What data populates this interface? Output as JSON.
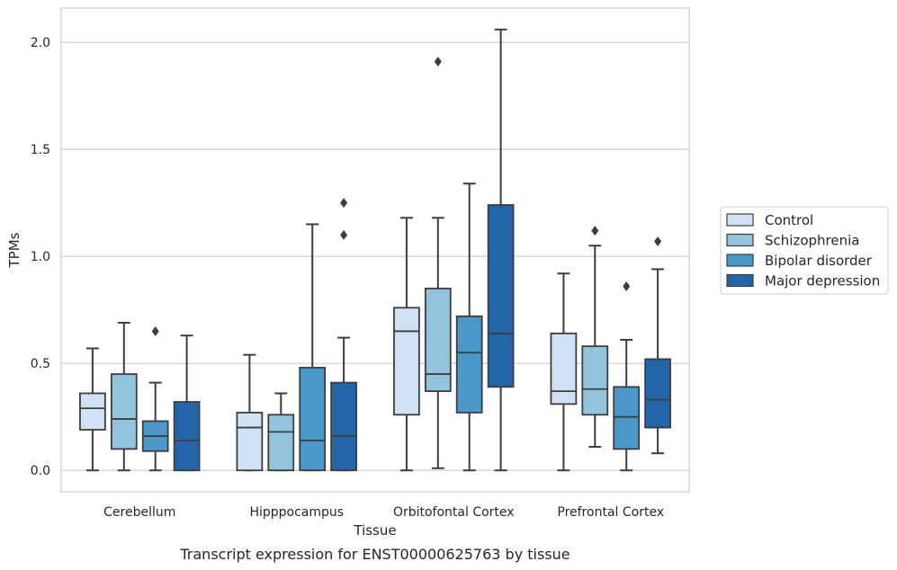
{
  "caption": "Transcript expression for ENST00000625763 by tissue",
  "colors": {
    "Control": "#cfe1f2",
    "Schizophrenia": "#93c4de",
    "Bipolar disorder": "#4a98c9",
    "Major depression": "#2366a8",
    "grid": "#cccccc",
    "line": "#3d3d3d"
  },
  "chart_data": {
    "type": "box",
    "xlabel": "Tissue",
    "ylabel": "TPMs",
    "ylim": [
      -0.1,
      2.16
    ],
    "yticks": [
      0.0,
      0.5,
      1.0,
      1.5,
      2.0
    ],
    "ytick_labels": [
      "0.0",
      "0.5",
      "1.0",
      "1.5",
      "2.0"
    ],
    "grid": "horizontal",
    "legend_position": "right",
    "categories": [
      "Cerebellum",
      "Hipppocampus",
      "Orbitofontal Cortex",
      "Prefrontal Cortex"
    ],
    "series": [
      {
        "name": "Control",
        "boxes": [
          {
            "low": 0.0,
            "q1": 0.19,
            "median": 0.29,
            "q3": 0.36,
            "high": 0.57,
            "outliers": []
          },
          {
            "low": 0.0,
            "q1": 0.0,
            "median": 0.2,
            "q3": 0.27,
            "high": 0.54,
            "outliers": []
          },
          {
            "low": 0.0,
            "q1": 0.26,
            "median": 0.65,
            "q3": 0.76,
            "high": 1.18,
            "outliers": []
          },
          {
            "low": 0.0,
            "q1": 0.31,
            "median": 0.37,
            "q3": 0.64,
            "high": 0.92,
            "outliers": []
          }
        ]
      },
      {
        "name": "Schizophrenia",
        "boxes": [
          {
            "low": 0.0,
            "q1": 0.1,
            "median": 0.24,
            "q3": 0.45,
            "high": 0.69,
            "outliers": []
          },
          {
            "low": 0.0,
            "q1": 0.0,
            "median": 0.18,
            "q3": 0.26,
            "high": 0.36,
            "outliers": []
          },
          {
            "low": 0.01,
            "q1": 0.37,
            "median": 0.45,
            "q3": 0.85,
            "high": 1.18,
            "outliers": [
              1.91
            ]
          },
          {
            "low": 0.11,
            "q1": 0.26,
            "median": 0.38,
            "q3": 0.58,
            "high": 1.05,
            "outliers": [
              1.12
            ]
          }
        ]
      },
      {
        "name": "Bipolar disorder",
        "boxes": [
          {
            "low": 0.0,
            "q1": 0.09,
            "median": 0.16,
            "q3": 0.23,
            "high": 0.41,
            "outliers": [
              0.65
            ]
          },
          {
            "low": 0.0,
            "q1": 0.0,
            "median": 0.14,
            "q3": 0.48,
            "high": 1.15,
            "outliers": []
          },
          {
            "low": 0.0,
            "q1": 0.27,
            "median": 0.55,
            "q3": 0.72,
            "high": 1.34,
            "outliers": []
          },
          {
            "low": 0.0,
            "q1": 0.1,
            "median": 0.25,
            "q3": 0.39,
            "high": 0.61,
            "outliers": [
              0.86
            ]
          }
        ]
      },
      {
        "name": "Major depression",
        "boxes": [
          {
            "low": 0.0,
            "q1": 0.0,
            "median": 0.14,
            "q3": 0.32,
            "high": 0.63,
            "outliers": []
          },
          {
            "low": 0.0,
            "q1": 0.0,
            "median": 0.16,
            "q3": 0.41,
            "high": 0.62,
            "outliers": [
              1.1,
              1.25
            ]
          },
          {
            "low": 0.0,
            "q1": 0.39,
            "median": 0.64,
            "q3": 1.24,
            "high": 2.06,
            "outliers": []
          },
          {
            "low": 0.08,
            "q1": 0.2,
            "median": 0.33,
            "q3": 0.52,
            "high": 0.94,
            "outliers": [
              1.07
            ]
          }
        ]
      }
    ]
  }
}
